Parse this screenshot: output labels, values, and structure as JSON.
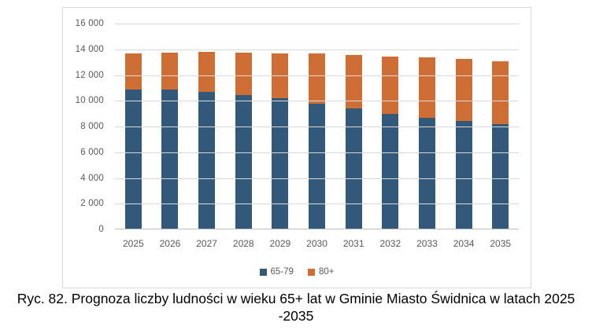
{
  "figure": {
    "caption_line1": "Ryc. 82. Prognoza liczby ludności w wieku 65+ lat w Gminie Miasto Świdnica w latach 2025",
    "caption_line2": "-2035"
  },
  "chart_data": {
    "type": "bar",
    "stacked": true,
    "title": "",
    "xlabel": "",
    "ylabel": "",
    "categories": [
      "2025",
      "2026",
      "2027",
      "2028",
      "2029",
      "2030",
      "2031",
      "2032",
      "2033",
      "2034",
      "2035"
    ],
    "series": [
      {
        "name": "65-79",
        "color": "#33597a",
        "values": [
          10900,
          10850,
          10700,
          10450,
          10200,
          9750,
          9400,
          9000,
          8700,
          8450,
          8200
        ]
      },
      {
        "name": "80+",
        "color": "#ce6e35",
        "values": [
          2800,
          2900,
          3100,
          3300,
          3500,
          3900,
          4150,
          4450,
          4650,
          4800,
          4900
        ]
      }
    ],
    "ylim": [
      0,
      16000
    ],
    "ytick_step": 2000,
    "yticks": [
      {
        "value": 0,
        "label": "0"
      },
      {
        "value": 2000,
        "label": "2 000"
      },
      {
        "value": 4000,
        "label": "4 000"
      },
      {
        "value": 6000,
        "label": "6 000"
      },
      {
        "value": 8000,
        "label": "8 000"
      },
      {
        "value": 10000,
        "label": "10 000"
      },
      {
        "value": 12000,
        "label": "12 000"
      },
      {
        "value": 14000,
        "label": "14 000"
      },
      {
        "value": 16000,
        "label": "16 000"
      }
    ],
    "grid": true,
    "legend_position": "bottom-center",
    "colors": {
      "gridline": "#d9d9d9",
      "axis_line": "#bfbfbf",
      "tick_text": "#595959",
      "chart_border": "#d9d9d9",
      "background": "#ffffff"
    }
  }
}
